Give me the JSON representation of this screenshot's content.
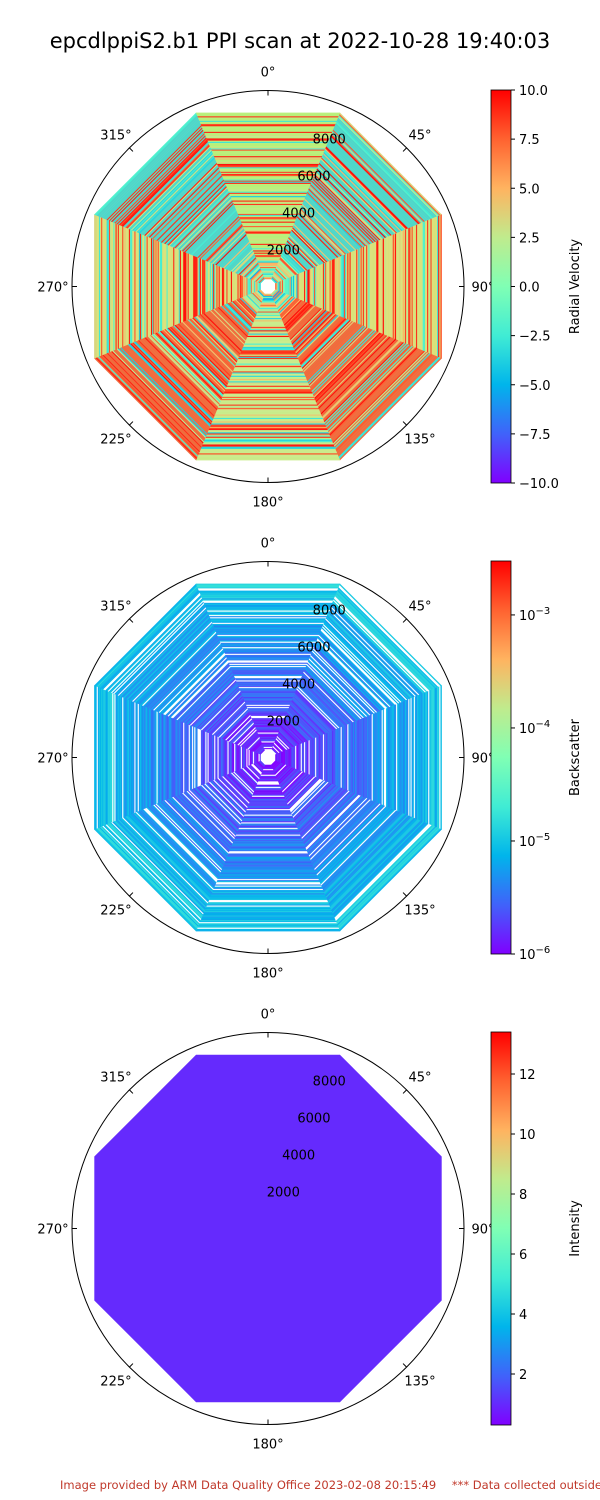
{
  "figure_title": "epcdlppiS2.b1 PPI scan at 2022-10-28 19:40:03",
  "footer": {
    "provided_by": "Image provided by ARM Data Quality Office 2023-02-08 20:15:49",
    "warning": "*** Data collected outside"
  },
  "chart_data": [
    {
      "type": "heatmap",
      "projection": "polar",
      "colormap": "rainbow",
      "theta_zero": "N",
      "theta_direction": "clockwise",
      "angle_ticks": [
        "0°",
        "45°",
        "90°",
        "135°",
        "180°",
        "225°",
        "270°",
        "315°"
      ],
      "range_ticks": [
        "2000",
        "4000",
        "6000",
        "8000"
      ],
      "range_tick_values": [
        2000,
        4000,
        6000,
        8000
      ],
      "rmax": 9800,
      "data_rmax": 9400,
      "colorbar": {
        "label": "Radial Velocity",
        "scale": "linear",
        "vmin": -10.0,
        "vmax": 10.0,
        "tick_values": [
          -10.0,
          -7.5,
          -5.0,
          -2.5,
          0.0,
          2.5,
          5.0,
          7.5,
          10.0
        ],
        "tick_labels": [
          "−10.0",
          "−7.5",
          "−5.0",
          "−2.5",
          "0.0",
          "2.5",
          "5.0",
          "7.5",
          "10.0"
        ]
      },
      "pattern": "noisy",
      "sector_colors": [
        "#4dd6c8",
        "#d9e27a",
        "#f06a3a",
        "#c9ec8a",
        "#f06a3a",
        "#d9e27a",
        "#4dd6c8",
        "#b9f07a"
      ]
    },
    {
      "type": "heatmap",
      "projection": "polar",
      "colormap": "rainbow",
      "theta_zero": "N",
      "theta_direction": "clockwise",
      "angle_ticks": [
        "0°",
        "45°",
        "90°",
        "135°",
        "180°",
        "225°",
        "270°",
        "315°"
      ],
      "range_ticks": [
        "2000",
        "4000",
        "6000",
        "8000"
      ],
      "range_tick_values": [
        2000,
        4000,
        6000,
        8000
      ],
      "rmax": 9800,
      "data_rmax": 9400,
      "colorbar": {
        "label": "Backscatter",
        "scale": "log",
        "vmin": 1e-06,
        "vmax": 0.003,
        "tick_values": [
          1e-06,
          1e-05,
          0.0001,
          0.001
        ],
        "tick_base": "10",
        "tick_exponents": [
          "−6",
          "−5",
          "−4",
          "−3"
        ]
      },
      "pattern": "backscatter"
    },
    {
      "type": "heatmap",
      "projection": "polar",
      "colormap": "rainbow",
      "theta_zero": "N",
      "theta_direction": "clockwise",
      "angle_ticks": [
        "0°",
        "45°",
        "90°",
        "135°",
        "180°",
        "225°",
        "270°",
        "315°"
      ],
      "range_ticks": [
        "2000",
        "4000",
        "6000",
        "8000"
      ],
      "range_tick_values": [
        2000,
        4000,
        6000,
        8000
      ],
      "rmax": 9800,
      "data_rmax": 9400,
      "colorbar": {
        "label": "Intensity",
        "scale": "linear",
        "vmin": 0.3,
        "vmax": 13.4,
        "tick_values": [
          2,
          4,
          6,
          8,
          10,
          12
        ],
        "tick_labels": [
          "2",
          "4",
          "6",
          "8",
          "10",
          "12"
        ]
      },
      "pattern": "uniform",
      "uniform_value": 1.0
    }
  ]
}
